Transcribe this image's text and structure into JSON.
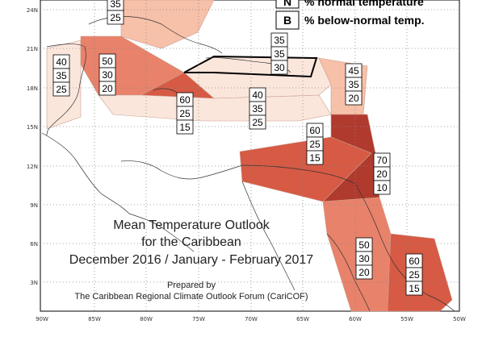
{
  "map": {
    "title_line1": "Mean Temperature Outlook",
    "title_line2": "for the Caribbean",
    "title_line3": "December 2016 / January - February 2017",
    "prepared_by": "Prepared by",
    "prepared_org": "The Caribbean Regional Climate Outlook Forum (CariCOF)",
    "legend": {
      "n_letter": "N",
      "n_text": "% normal temperature",
      "b_letter": "B",
      "b_text": "% below-normal temp."
    },
    "lat_labels": [
      "24N",
      "21N",
      "18N",
      "15N",
      "12N",
      "9N",
      "6N",
      "3N"
    ],
    "lon_labels": [
      "90W",
      "85W",
      "80W",
      "75W",
      "70W",
      "65W",
      "60W",
      "55W",
      "50W"
    ],
    "colors": {
      "very_light": "#fbe6dc",
      "light": "#f7c0a8",
      "medium": "#e8826a",
      "strong": "#d65a44",
      "dark": "#b03a2e",
      "outline": "#000000"
    },
    "regions": [
      {
        "name": "bahamas-zone",
        "color": "light",
        "values": [
          "35",
          "25"
        ]
      },
      {
        "name": "western-cuba-zone",
        "color": "very_light",
        "values": [
          "40",
          "35",
          "25"
        ]
      },
      {
        "name": "belize-zone",
        "color": "medium",
        "values": [
          "50",
          "30",
          "20"
        ]
      },
      {
        "name": "jamaica-zone",
        "color": "strong",
        "values": [
          "60",
          "25",
          "15"
        ]
      },
      {
        "name": "hispaniola-zone",
        "color": "very_light",
        "values": [
          "35",
          "35",
          "30"
        ]
      },
      {
        "name": "caribbean-sea-zone",
        "color": "very_light",
        "values": [
          "40",
          "35",
          "25"
        ]
      },
      {
        "name": "leeward-islands-zone",
        "color": "light",
        "values": [
          "45",
          "35",
          "20"
        ]
      },
      {
        "name": "south-caribbean-zone",
        "color": "strong",
        "values": [
          "60",
          "25",
          "15"
        ]
      },
      {
        "name": "windward-trinidad-zone",
        "color": "dark",
        "values": [
          "70",
          "20",
          "10"
        ]
      },
      {
        "name": "guyana-zone",
        "color": "medium",
        "values": [
          "50",
          "30",
          "20"
        ]
      },
      {
        "name": "suriname-guiana-zone",
        "color": "strong",
        "values": [
          "60",
          "25",
          "15"
        ]
      }
    ]
  }
}
